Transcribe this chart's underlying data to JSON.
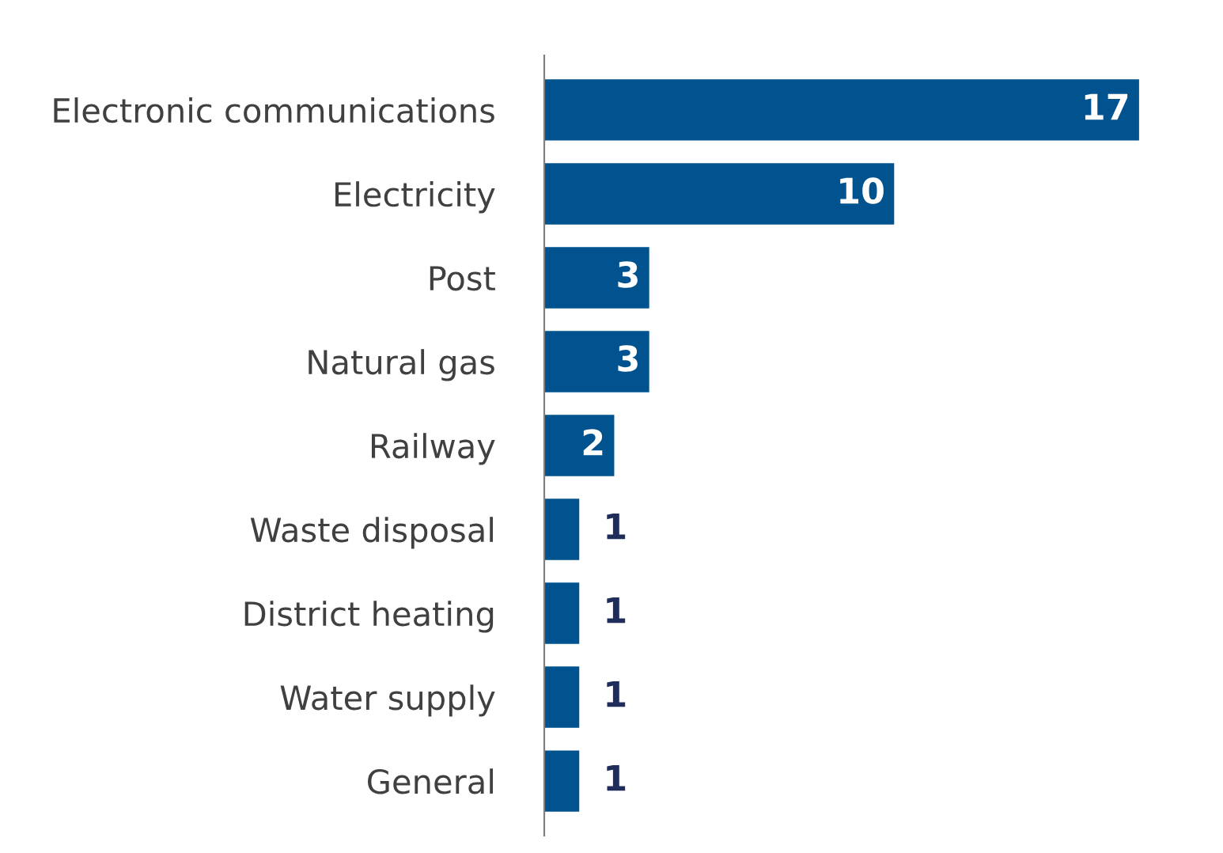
{
  "chart_data": {
    "type": "bar",
    "orientation": "horizontal",
    "categories": [
      "Electronic communications",
      "Electricity",
      "Post",
      "Natural gas",
      "Railway",
      "Waste disposal",
      "District heating",
      "Water supply",
      "General"
    ],
    "values": [
      17,
      10,
      3,
      3,
      2,
      1,
      1,
      1,
      1
    ],
    "color": "#00538f",
    "data_labels": true,
    "grid": false,
    "legend": false
  }
}
